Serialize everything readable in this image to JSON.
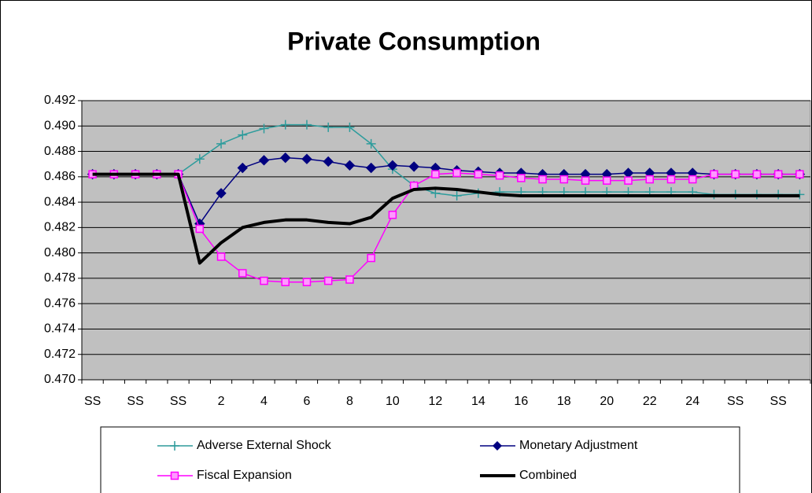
{
  "chart_data": {
    "type": "line",
    "title": "Private Consumption",
    "categories": [
      "SS",
      null,
      "SS",
      null,
      "SS",
      null,
      "2",
      null,
      "4",
      null,
      "6",
      null,
      "8",
      null,
      "10",
      null,
      "12",
      null,
      "14",
      null,
      "16",
      null,
      "18",
      null,
      "20",
      null,
      "22",
      null,
      "24",
      null,
      "SS",
      null,
      "SS",
      null
    ],
    "ylim": [
      0.47,
      0.492
    ],
    "yticks": [
      {
        "value": 0.47,
        "label": "0.470"
      },
      0.472,
      0.474,
      0.476,
      0.478,
      {
        "value": 0.48,
        "label": "0.480"
      },
      0.482,
      0.484,
      0.486,
      0.488,
      {
        "value": 0.49,
        "label": "0.490"
      },
      0.492
    ],
    "grid": true,
    "legend": "bottom",
    "background": "#c0c0c0",
    "series": [
      {
        "name": "Adverse External Shock",
        "color": "#2e9c9c",
        "marker": "plus",
        "values": [
          0.4862,
          0.4862,
          0.4862,
          0.4862,
          0.4862,
          0.4874,
          0.4886,
          0.4893,
          0.4898,
          0.4901,
          0.4901,
          0.4899,
          0.4899,
          0.4886,
          0.4866,
          0.4853,
          0.4847,
          0.4845,
          0.4847,
          0.4848,
          0.4848,
          0.4848,
          0.4848,
          0.4848,
          0.4848,
          0.4848,
          0.4848,
          0.4848,
          0.4848,
          0.4846,
          0.4846,
          0.4846,
          0.4846,
          0.4846
        ]
      },
      {
        "name": "Monetary Adjustment",
        "color": "#000080",
        "marker": "diamond",
        "values": [
          0.4862,
          0.4862,
          0.4862,
          0.4862,
          0.4862,
          0.4823,
          0.4847,
          0.4867,
          0.4873,
          0.4875,
          0.4874,
          0.4872,
          0.4869,
          0.4867,
          0.4869,
          0.4868,
          0.4867,
          0.4865,
          0.4864,
          0.4863,
          0.4863,
          0.4862,
          0.4862,
          0.4862,
          0.4862,
          0.4863,
          0.4863,
          0.4863,
          0.4863,
          0.4862,
          0.4862,
          0.4862,
          0.4862,
          0.4862
        ]
      },
      {
        "name": "Fiscal Expansion",
        "color": "#ff00ff",
        "marker": "square",
        "values": [
          0.4862,
          0.4862,
          0.4862,
          0.4862,
          0.4862,
          0.4819,
          0.4797,
          0.4784,
          0.4778,
          0.4777,
          0.4777,
          0.4778,
          0.4779,
          0.4796,
          0.483,
          0.4853,
          0.4862,
          0.4863,
          0.4862,
          0.4861,
          0.4859,
          0.4858,
          0.4858,
          0.4857,
          0.4857,
          0.4857,
          0.4858,
          0.4858,
          0.4858,
          0.4862,
          0.4862,
          0.4862,
          0.4862,
          0.4862
        ]
      },
      {
        "name": "Combined",
        "color": "#000000",
        "marker": "none",
        "values": [
          0.4862,
          0.4862,
          0.4862,
          0.4862,
          0.4862,
          0.4792,
          0.4808,
          0.482,
          0.4824,
          0.4826,
          0.4826,
          0.4824,
          0.4823,
          0.4828,
          0.4843,
          0.485,
          0.4851,
          0.485,
          0.4848,
          0.4846,
          0.4845,
          0.4845,
          0.4845,
          0.4845,
          0.4845,
          0.4845,
          0.4845,
          0.4845,
          0.4845,
          0.4845,
          0.4845,
          0.4845,
          0.4845,
          0.4845
        ]
      }
    ]
  }
}
